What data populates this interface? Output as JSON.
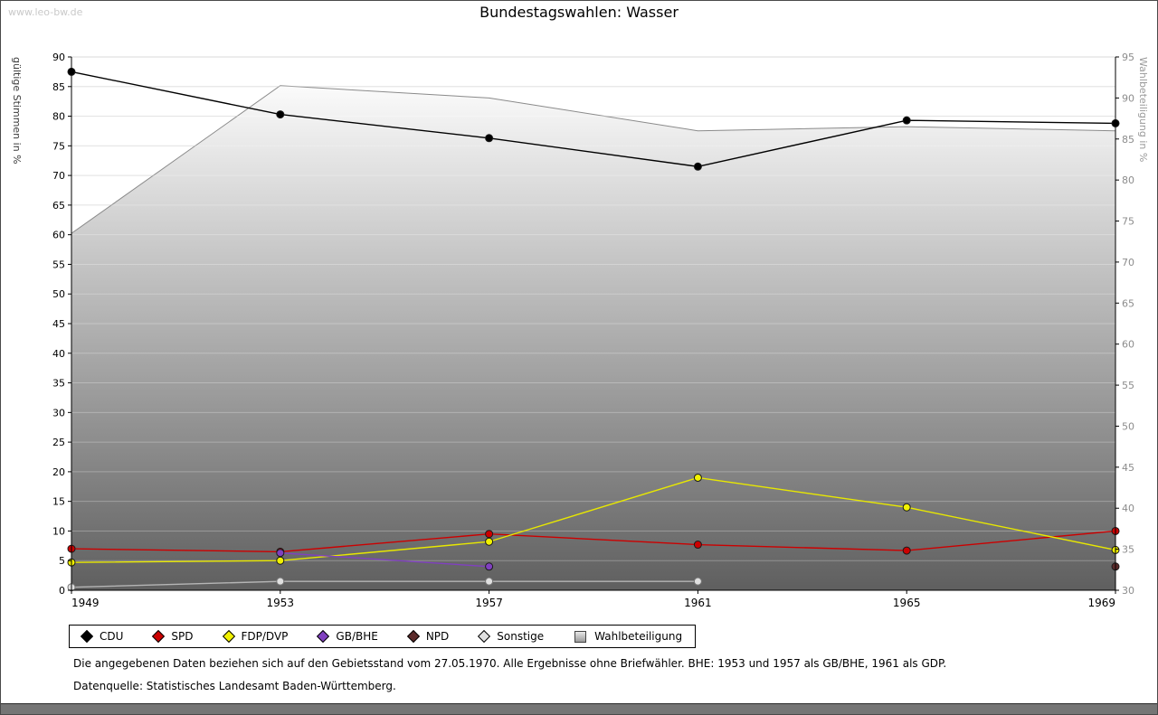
{
  "watermark": "www.leo-bw.de",
  "title": "Bundestagswahlen: Wasser",
  "footnotes": {
    "line1": "Die angegebenen Daten beziehen sich auf den Gebietsstand vom 27.05.1970. Alle Ergebnisse ohne Briefwähler. BHE: 1953 und 1957 als GB/BHE, 1961 als GDP.",
    "line2": "Datenquelle: Statistisches Landesamt Baden-Württemberg."
  },
  "chart_data": {
    "type": "line",
    "title": "Bundestagswahlen: Wasser",
    "x": [
      1949,
      1953,
      1957,
      1961,
      1965,
      1969
    ],
    "left_axis": {
      "label": "gültige Stimmen in %",
      "min": 0,
      "max": 90,
      "step": 5
    },
    "right_axis": {
      "label": "Wahlbeteiligung in %",
      "min": 30,
      "max": 95,
      "step": 5
    },
    "grid": true,
    "legend_position": "bottom",
    "series": [
      {
        "name": "CDU",
        "axis": "left",
        "color": "#000000",
        "marker": "#000000",
        "values": [
          87.5,
          80.3,
          76.3,
          71.5,
          79.3,
          78.8
        ]
      },
      {
        "name": "SPD",
        "axis": "left",
        "color": "#cc0000",
        "marker": "#cc0000",
        "values": [
          7.0,
          6.5,
          9.5,
          7.7,
          6.7,
          10.0
        ]
      },
      {
        "name": "FDP/DVP",
        "axis": "left",
        "color": "#e8e800",
        "marker": "#f2f200",
        "values": [
          4.7,
          5.0,
          8.2,
          19.0,
          14.0,
          6.8
        ]
      },
      {
        "name": "GB/BHE",
        "axis": "left",
        "color": "#8040c0",
        "marker": "#8040c0",
        "values": [
          null,
          6.3,
          4.0,
          null,
          null,
          null
        ]
      },
      {
        "name": "NPD",
        "axis": "left",
        "color": "#5b2a2a",
        "marker": "#5b2a2a",
        "values": [
          null,
          null,
          null,
          null,
          null,
          4.0
        ]
      },
      {
        "name": "Sonstige",
        "axis": "left",
        "color": "#b5b5b5",
        "marker": "#e0e0e0",
        "values": [
          0.5,
          1.5,
          1.5,
          1.5,
          null,
          null
        ]
      },
      {
        "name": "Wahlbeteiligung",
        "axis": "right",
        "color": "#b4b4b4",
        "type": "area",
        "values": [
          73.5,
          91.5,
          90.0,
          86.0,
          86.5,
          86.0
        ]
      }
    ]
  }
}
